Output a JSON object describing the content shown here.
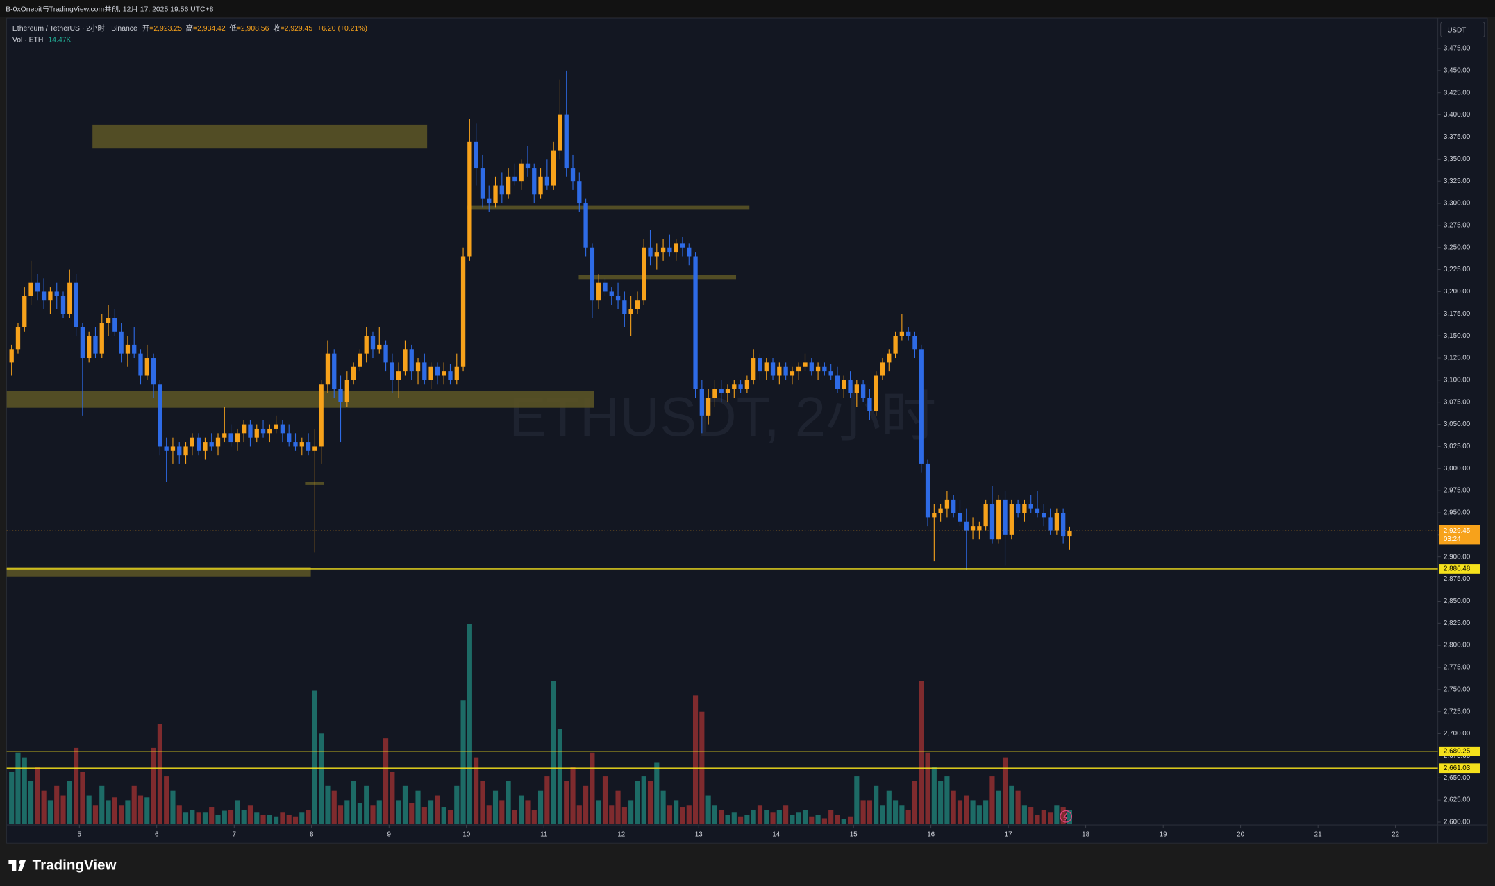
{
  "header": {
    "share": "B-0xOnebit与TradingView.com共创, 12月 17, 2025 19:56 UTC+8"
  },
  "chart_data": {
    "type": "candlestick",
    "symbol": "Ethereum / TetherUS · 2小时 · Binance",
    "ohlc": [
      [
        "开",
        "=2,923.25"
      ],
      [
        "高",
        "=2,934.42"
      ],
      [
        "低",
        "=2,908.56"
      ],
      [
        "收",
        "=2,929.45"
      ]
    ],
    "change": "+6.20 (+0.21%)",
    "volume_title": "Vol · ETH",
    "volume_value": "14.47K",
    "currency": "USDT",
    "watermark": "ETHUSDT, 2小时",
    "colors": {
      "up": "#f7a21b",
      "down": "#2e6be6",
      "volume_up": "#1d6b66",
      "volume_down": "#7f2b2e"
    },
    "candles": [
      [
        3120,
        3140,
        3105,
        3135
      ],
      [
        3135,
        3165,
        3130,
        3160
      ],
      [
        3160,
        3205,
        3155,
        3195
      ],
      [
        3195,
        3235,
        3185,
        3210
      ],
      [
        3210,
        3220,
        3190,
        3200
      ],
      [
        3200,
        3215,
        3180,
        3190
      ],
      [
        3190,
        3205,
        3175,
        3200
      ],
      [
        3200,
        3210,
        3180,
        3195
      ],
      [
        3195,
        3200,
        3170,
        3175
      ],
      [
        3175,
        3225,
        3170,
        3210
      ],
      [
        3210,
        3220,
        3150,
        3160
      ],
      [
        3160,
        3165,
        3060,
        3125
      ],
      [
        3125,
        3155,
        3120,
        3150
      ],
      [
        3150,
        3160,
        3125,
        3130
      ],
      [
        3130,
        3175,
        3125,
        3165
      ],
      [
        3165,
        3185,
        3150,
        3170
      ],
      [
        3170,
        3180,
        3150,
        3155
      ],
      [
        3155,
        3165,
        3120,
        3130
      ],
      [
        3130,
        3150,
        3115,
        3140
      ],
      [
        3140,
        3160,
        3125,
        3130
      ],
      [
        3130,
        3135,
        3095,
        3105
      ],
      [
        3105,
        3140,
        3100,
        3125
      ],
      [
        3125,
        3130,
        3080,
        3095
      ],
      [
        3095,
        3100,
        3015,
        3025
      ],
      [
        3025,
        3035,
        2985,
        3020
      ],
      [
        3020,
        3035,
        3005,
        3025
      ],
      [
        3025,
        3030,
        3005,
        3015
      ],
      [
        3015,
        3030,
        3005,
        3025
      ],
      [
        3025,
        3040,
        3015,
        3035
      ],
      [
        3035,
        3040,
        3015,
        3020
      ],
      [
        3020,
        3035,
        3010,
        3030
      ],
      [
        3030,
        3040,
        3020,
        3025
      ],
      [
        3025,
        3040,
        3015,
        3035
      ],
      [
        3035,
        3070,
        3030,
        3040
      ],
      [
        3040,
        3050,
        3025,
        3030
      ],
      [
        3030,
        3045,
        3020,
        3040
      ],
      [
        3040,
        3055,
        3030,
        3050
      ],
      [
        3050,
        3055,
        3025,
        3035
      ],
      [
        3035,
        3050,
        3030,
        3045
      ],
      [
        3045,
        3055,
        3035,
        3040
      ],
      [
        3040,
        3050,
        3030,
        3045
      ],
      [
        3045,
        3060,
        3040,
        3050
      ],
      [
        3050,
        3055,
        3030,
        3040
      ],
      [
        3040,
        3050,
        3025,
        3030
      ],
      [
        3030,
        3040,
        3020,
        3025
      ],
      [
        3025,
        3035,
        3015,
        3030
      ],
      [
        3030,
        3040,
        3015,
        3020
      ],
      [
        3020,
        3045,
        2905,
        3025
      ],
      [
        3025,
        3100,
        3005,
        3095
      ],
      [
        3095,
        3145,
        3085,
        3130
      ],
      [
        3130,
        3135,
        3080,
        3090
      ],
      [
        3090,
        3105,
        3030,
        3075
      ],
      [
        3075,
        3110,
        3070,
        3100
      ],
      [
        3100,
        3120,
        3095,
        3115
      ],
      [
        3115,
        3135,
        3110,
        3130
      ],
      [
        3130,
        3160,
        3120,
        3150
      ],
      [
        3150,
        3155,
        3125,
        3135
      ],
      [
        3135,
        3160,
        3130,
        3140
      ],
      [
        3140,
        3145,
        3110,
        3120
      ],
      [
        3120,
        3130,
        3085,
        3100
      ],
      [
        3100,
        3120,
        3080,
        3110
      ],
      [
        3110,
        3145,
        3105,
        3135
      ],
      [
        3135,
        3140,
        3100,
        3110
      ],
      [
        3110,
        3125,
        3095,
        3120
      ],
      [
        3120,
        3130,
        3095,
        3100
      ],
      [
        3100,
        3120,
        3090,
        3115
      ],
      [
        3115,
        3120,
        3095,
        3105
      ],
      [
        3105,
        3120,
        3095,
        3110
      ],
      [
        3110,
        3118,
        3095,
        3100
      ],
      [
        3100,
        3130,
        3095,
        3115
      ],
      [
        3115,
        3250,
        3110,
        3240
      ],
      [
        3240,
        3395,
        3235,
        3370
      ],
      [
        3370,
        3390,
        3320,
        3340
      ],
      [
        3340,
        3355,
        3295,
        3305
      ],
      [
        3305,
        3320,
        3290,
        3300
      ],
      [
        3300,
        3330,
        3295,
        3320
      ],
      [
        3320,
        3335,
        3300,
        3310
      ],
      [
        3310,
        3340,
        3305,
        3330
      ],
      [
        3330,
        3345,
        3320,
        3325
      ],
      [
        3325,
        3350,
        3315,
        3345
      ],
      [
        3345,
        3365,
        3330,
        3340
      ],
      [
        3340,
        3345,
        3300,
        3310
      ],
      [
        3310,
        3340,
        3305,
        3330
      ],
      [
        3330,
        3350,
        3315,
        3320
      ],
      [
        3320,
        3370,
        3315,
        3360
      ],
      [
        3360,
        3440,
        3350,
        3400
      ],
      [
        3400,
        3450,
        3330,
        3340
      ],
      [
        3340,
        3355,
        3315,
        3325
      ],
      [
        3325,
        3335,
        3290,
        3300
      ],
      [
        3300,
        3305,
        3240,
        3250
      ],
      [
        3250,
        3255,
        3170,
        3190
      ],
      [
        3190,
        3220,
        3180,
        3210
      ],
      [
        3210,
        3215,
        3195,
        3200
      ],
      [
        3200,
        3205,
        3185,
        3195
      ],
      [
        3195,
        3210,
        3180,
        3190
      ],
      [
        3190,
        3200,
        3160,
        3175
      ],
      [
        3175,
        3195,
        3150,
        3180
      ],
      [
        3180,
        3200,
        3175,
        3190
      ],
      [
        3190,
        3260,
        3185,
        3250
      ],
      [
        3250,
        3270,
        3230,
        3240
      ],
      [
        3240,
        3255,
        3225,
        3245
      ],
      [
        3245,
        3260,
        3235,
        3250
      ],
      [
        3250,
        3265,
        3240,
        3245
      ],
      [
        3245,
        3260,
        3235,
        3255
      ],
      [
        3255,
        3262,
        3240,
        3250
      ],
      [
        3250,
        3255,
        3230,
        3240
      ],
      [
        3240,
        3245,
        3080,
        3090
      ],
      [
        3090,
        3100,
        3040,
        3060
      ],
      [
        3060,
        3090,
        3050,
        3080
      ],
      [
        3080,
        3100,
        3070,
        3090
      ],
      [
        3090,
        3100,
        3075,
        3085
      ],
      [
        3085,
        3095,
        3075,
        3090
      ],
      [
        3090,
        3100,
        3080,
        3095
      ],
      [
        3095,
        3100,
        3085,
        3090
      ],
      [
        3090,
        3105,
        3085,
        3100
      ],
      [
        3100,
        3135,
        3095,
        3125
      ],
      [
        3125,
        3130,
        3100,
        3110
      ],
      [
        3110,
        3125,
        3100,
        3120
      ],
      [
        3120,
        3125,
        3100,
        3105
      ],
      [
        3105,
        3120,
        3095,
        3115
      ],
      [
        3115,
        3120,
        3100,
        3105
      ],
      [
        3105,
        3115,
        3095,
        3110
      ],
      [
        3110,
        3120,
        3100,
        3115
      ],
      [
        3115,
        3130,
        3110,
        3120
      ],
      [
        3120,
        3125,
        3105,
        3110
      ],
      [
        3110,
        3120,
        3100,
        3115
      ],
      [
        3115,
        3120,
        3105,
        3110
      ],
      [
        3110,
        3118,
        3100,
        3105
      ],
      [
        3105,
        3115,
        3085,
        3090
      ],
      [
        3090,
        3105,
        3080,
        3100
      ],
      [
        3100,
        3110,
        3080,
        3085
      ],
      [
        3085,
        3100,
        3070,
        3095
      ],
      [
        3095,
        3100,
        3075,
        3080
      ],
      [
        3080,
        3090,
        3055,
        3065
      ],
      [
        3065,
        3110,
        3060,
        3105
      ],
      [
        3105,
        3125,
        3100,
        3120
      ],
      [
        3120,
        3135,
        3110,
        3130
      ],
      [
        3130,
        3155,
        3125,
        3150
      ],
      [
        3150,
        3175,
        3145,
        3155
      ],
      [
        3155,
        3160,
        3145,
        3150
      ],
      [
        3150,
        3155,
        3125,
        3135
      ],
      [
        3135,
        3140,
        2995,
        3005
      ],
      [
        3005,
        3010,
        2935,
        2945
      ],
      [
        2945,
        2960,
        2895,
        2950
      ],
      [
        2950,
        2960,
        2940,
        2955
      ],
      [
        2955,
        2975,
        2945,
        2965
      ],
      [
        2965,
        2970,
        2945,
        2950
      ],
      [
        2950,
        2965,
        2935,
        2940
      ],
      [
        2940,
        2955,
        2885,
        2930
      ],
      [
        2930,
        2945,
        2920,
        2935
      ],
      [
        2930,
        2940,
        2920,
        2935
      ],
      [
        2935,
        2965,
        2930,
        2960
      ],
      [
        2960,
        2980,
        2915,
        2920
      ],
      [
        2920,
        2970,
        2915,
        2965
      ],
      [
        2965,
        2975,
        2890,
        2925
      ],
      [
        2925,
        2965,
        2920,
        2960
      ],
      [
        2960,
        2965,
        2945,
        2950
      ],
      [
        2950,
        2965,
        2940,
        2960
      ],
      [
        2960,
        2970,
        2950,
        2955
      ],
      [
        2955,
        2975,
        2945,
        2950
      ],
      [
        2950,
        2960,
        2935,
        2945
      ],
      [
        2945,
        2955,
        2925,
        2930
      ],
      [
        2930,
        2955,
        2925,
        2950
      ],
      [
        2950,
        2955,
        2915,
        2923.25
      ],
      [
        2923.25,
        2934.42,
        2908.56,
        2929.45
      ]
    ],
    "volumes": [
      55,
      75,
      70,
      45,
      60,
      35,
      25,
      40,
      30,
      45,
      80,
      55,
      30,
      20,
      40,
      25,
      28,
      20,
      25,
      40,
      30,
      28,
      80,
      105,
      50,
      35,
      20,
      12,
      15,
      12,
      12,
      18,
      10,
      14,
      15,
      25,
      15,
      20,
      12,
      10,
      10,
      8,
      12,
      10,
      8,
      12,
      15,
      140,
      95,
      40,
      35,
      20,
      25,
      45,
      22,
      40,
      20,
      25,
      90,
      55,
      25,
      40,
      22,
      35,
      18,
      25,
      30,
      18,
      15,
      40,
      130,
      210,
      70,
      45,
      20,
      35,
      25,
      45,
      15,
      30,
      25,
      15,
      35,
      50,
      150,
      100,
      45,
      60,
      20,
      40,
      75,
      25,
      50,
      20,
      35,
      18,
      25,
      45,
      50,
      45,
      65,
      35,
      20,
      25,
      18,
      20,
      135,
      118,
      30,
      20,
      15,
      10,
      12,
      8,
      10,
      15,
      20,
      15,
      12,
      15,
      20,
      10,
      12,
      15,
      8,
      10,
      6,
      15,
      10,
      5,
      8,
      50,
      25,
      25,
      40,
      20,
      35,
      25,
      20,
      15,
      45,
      150,
      75,
      60,
      45,
      50,
      35,
      25,
      30,
      25,
      20,
      25,
      50,
      35,
      70,
      40,
      35,
      20,
      18,
      10,
      15,
      12,
      20,
      18,
      14.47
    ],
    "ylim": [
      2600,
      3475
    ],
    "yticks": [
      {
        "value": 2600,
        "label": "2,600.00"
      },
      {
        "value": 2625,
        "label": "2,625.00"
      },
      {
        "value": 2650,
        "label": "2,650.00"
      },
      {
        "value": 2675,
        "label": "2,675.00"
      },
      {
        "value": 2700,
        "label": "2,700.00"
      },
      {
        "value": 2725,
        "label": "2,725.00"
      },
      {
        "value": 2750,
        "label": "2,750.00"
      },
      {
        "value": 2775,
        "label": "2,775.00"
      },
      {
        "value": 2800,
        "label": "2,800.00"
      },
      {
        "value": 2825,
        "label": "2,825.00"
      },
      {
        "value": 2850,
        "label": "2,850.00"
      },
      {
        "value": 2875,
        "label": "2,875.00"
      },
      {
        "value": 2900,
        "label": "2,900.00"
      },
      {
        "value": 2925,
        "label": "2,925.00"
      },
      {
        "value": 2950,
        "label": "2,950.00"
      },
      {
        "value": 2975,
        "label": "2,975.00"
      },
      {
        "value": 3000,
        "label": "3,000.00"
      },
      {
        "value": 3025,
        "label": "3,025.00"
      },
      {
        "value": 3050,
        "label": "3,050.00"
      },
      {
        "value": 3075,
        "label": "3,075.00"
      },
      {
        "value": 3100,
        "label": "3,100.00"
      },
      {
        "value": 3125,
        "label": "3,125.00"
      },
      {
        "value": 3150,
        "label": "3,150.00"
      },
      {
        "value": 3175,
        "label": "3,175.00"
      },
      {
        "value": 3200,
        "label": "3,200.00"
      },
      {
        "value": 3225,
        "label": "3,225.00"
      },
      {
        "value": 3250,
        "label": "3,250.00"
      },
      {
        "value": 3275,
        "label": "3,275.00"
      },
      {
        "value": 3300,
        "label": "3,300.00"
      },
      {
        "value": 3325,
        "label": "3,325.00"
      },
      {
        "value": 3350,
        "label": "3,350.00"
      },
      {
        "value": 3375,
        "label": "3,375.00"
      },
      {
        "value": 3400,
        "label": "3,400.00"
      },
      {
        "value": 3425,
        "label": "3,425.00"
      },
      {
        "value": 3450,
        "label": "3,450.00"
      },
      {
        "value": 3475,
        "label": "3,475.00"
      }
    ],
    "xticks": [
      5,
      6,
      7,
      8,
      9,
      10,
      11,
      12,
      13,
      14,
      15,
      16,
      17,
      18,
      19,
      20,
      21,
      22
    ],
    "last_price": {
      "value": 2929.45,
      "label": "2,929.45"
    },
    "countdown": "03:24",
    "price_lines": [
      {
        "value": 2886.48,
        "label": "2,886.48"
      },
      {
        "value": 2680.25,
        "label": "2,680.25"
      },
      {
        "value": 2661.03,
        "label": "2,661.03"
      }
    ]
  },
  "footer": {
    "brand": "TradingView"
  }
}
